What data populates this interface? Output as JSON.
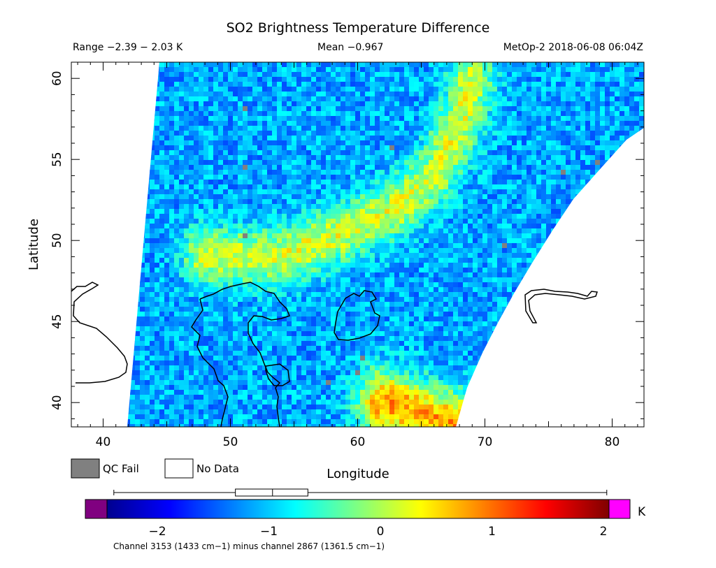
{
  "header": {
    "title": "SO2 Brightness Temperature Difference",
    "range": "Range −2.39 − 2.03 K",
    "mean": "Mean −0.967",
    "satellite_time": "MetOp-2 2018-06-08 06:04Z"
  },
  "legend": {
    "qc_fail": "QC Fail",
    "no_data": "No Data",
    "qc_fail_color": "#808080",
    "no_data_color": "#ffffff"
  },
  "colorbar": {
    "unit": "K",
    "min": -2.39,
    "max": 2.03,
    "ticks": [
      -2,
      -1,
      0,
      1,
      2
    ],
    "tick_labels": [
      "−2",
      "−1",
      "0",
      "1",
      "2"
    ],
    "under_color": "#800080",
    "over_color": "#ff00ff",
    "footnote": "Channel 3153 (1433 cm−1) minus channel 2867 (1361.5 cm−1)",
    "boxplot": {
      "min": -2.39,
      "q1": -1.3,
      "median": -0.967,
      "q3": -0.65,
      "max": 2.03
    }
  },
  "chart_data": {
    "type": "heatmap",
    "title": "SO2 Brightness Temperature Difference",
    "xlabel": "Longitude",
    "ylabel": "Latitude",
    "xlim": [
      37.5,
      82.5
    ],
    "ylim": [
      38.5,
      61
    ],
    "xticks": [
      40,
      50,
      60,
      70,
      80
    ],
    "yticks": [
      40,
      45,
      50,
      55,
      60
    ],
    "value_range": [
      -2.39,
      2.03
    ],
    "mean": -0.967,
    "unit": "K",
    "colormap": "jet",
    "features": [
      {
        "name": "elevated band",
        "value": 0.2,
        "path": [
          [
            48,
            49
          ],
          [
            54,
            49
          ],
          [
            59,
            50.5
          ],
          [
            63,
            52
          ],
          [
            66,
            54
          ],
          [
            68,
            57
          ],
          [
            69,
            60
          ]
        ]
      },
      {
        "name": "elevated area",
        "value": 0.8,
        "path": [
          [
            62,
            40
          ],
          [
            66,
            39
          ],
          [
            68,
            38.5
          ]
        ]
      }
    ]
  }
}
